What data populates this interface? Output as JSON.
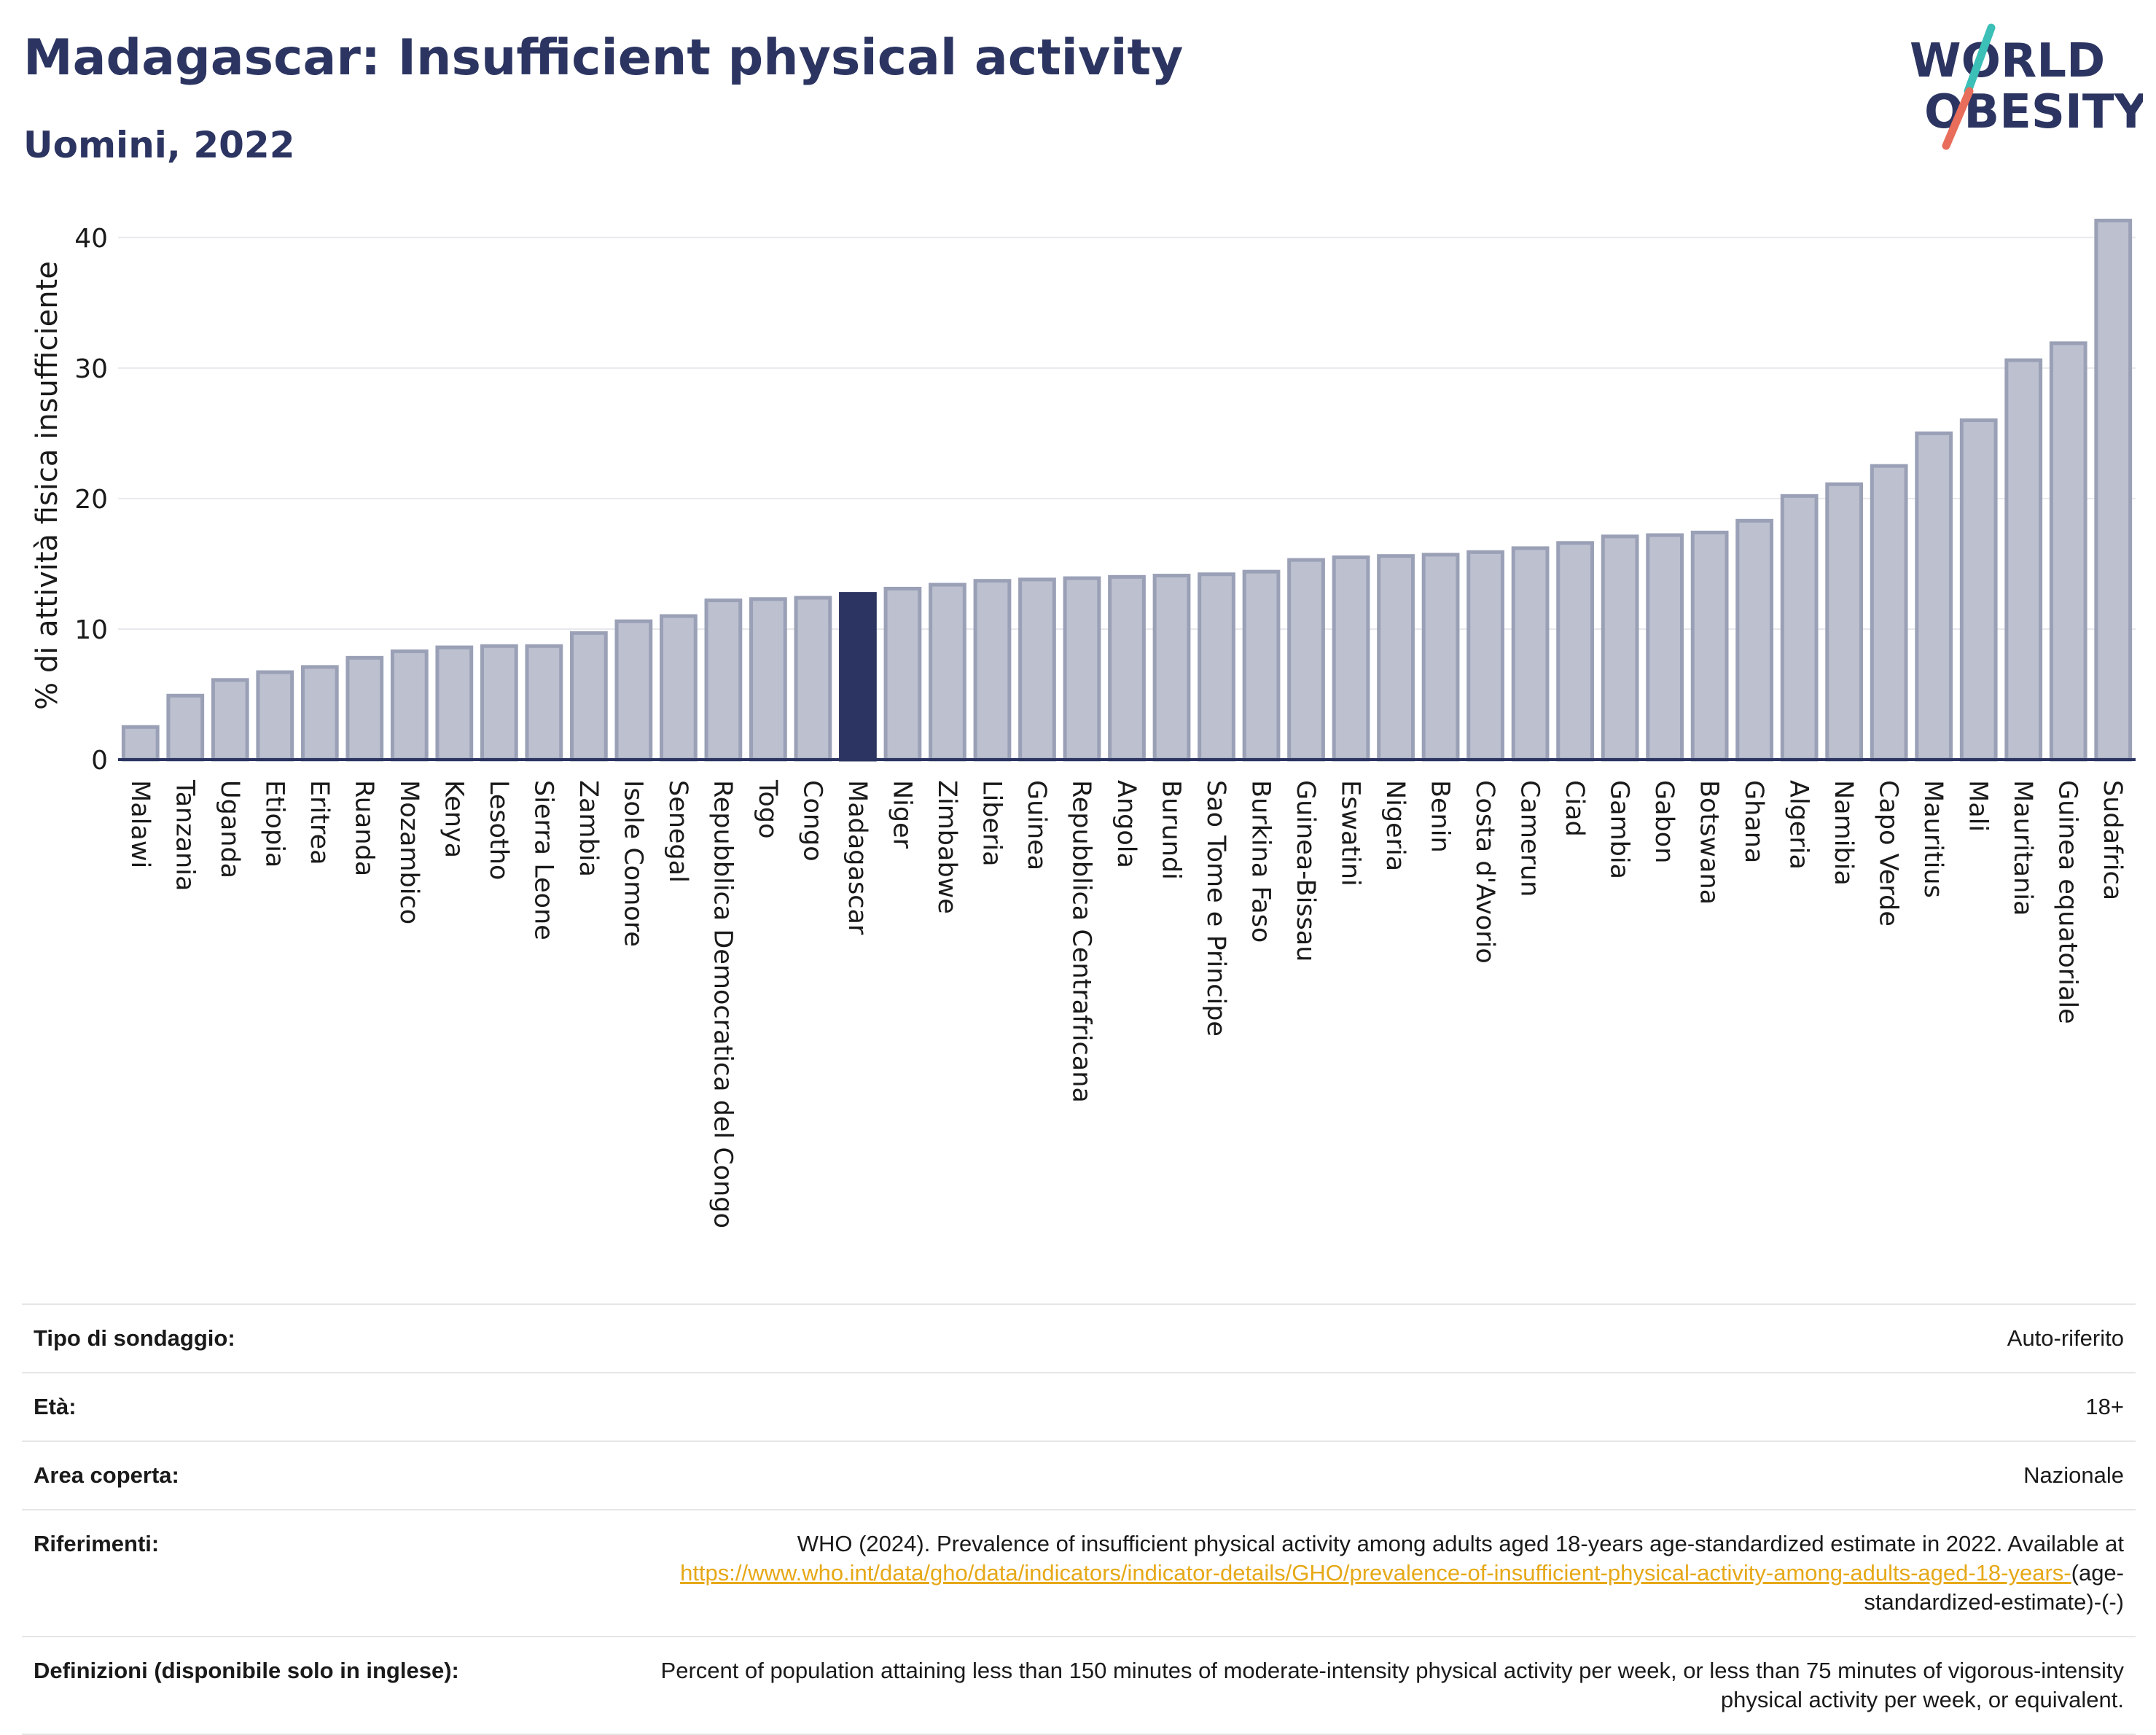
{
  "header": {
    "title": "Madagascar: Insufficient physical activity",
    "subtitle": "Uomini, 2022"
  },
  "logo": {
    "line1": "WORLD",
    "line2": "OBESITY"
  },
  "colors": {
    "bar": "#bcc0cf",
    "bar_stroke": "#9aa0b6",
    "highlight": "#2c3561",
    "axis": "#2c3561",
    "grid": "#e8e8ee",
    "link": "#e6a817",
    "logo_slash_teal": "#3bbfb7",
    "logo_slash_red": "#e86d5a"
  },
  "chart_data": {
    "type": "bar",
    "ylabel": "% di attività fisica insufficiente",
    "ylim": [
      0,
      42
    ],
    "yticks": [
      0,
      10,
      20,
      30,
      40
    ],
    "grid": true,
    "highlight": "Madagascar",
    "categories": [
      "Malawi",
      "Tanzania",
      "Uganda",
      "Etiopia",
      "Eritrea",
      "Ruanda",
      "Mozambico",
      "Kenya",
      "Lesotho",
      "Sierra Leone",
      "Zambia",
      "Isole Comore",
      "Senegal",
      "Repubblica Democratica del Congo",
      "Togo",
      "Congo",
      "Madagascar",
      "Niger",
      "Zimbabwe",
      "Liberia",
      "Guinea",
      "Repubblica Centrafricana",
      "Angola",
      "Burundi",
      "Sao Tome e Principe",
      "Burkina Faso",
      "Guinea-Bissau",
      "Eswatini",
      "Nigeria",
      "Benin",
      "Costa d'Avorio",
      "Camerun",
      "Ciad",
      "Gambia",
      "Gabon",
      "Botswana",
      "Ghana",
      "Algeria",
      "Namibia",
      "Capo Verde",
      "Mauritius",
      "Mali",
      "Mauritania",
      "Guinea equatoriale",
      "Sudafrica"
    ],
    "values": [
      2.5,
      4.9,
      6.1,
      6.7,
      7.1,
      7.8,
      8.3,
      8.6,
      8.7,
      8.7,
      9.7,
      10.6,
      11.0,
      12.2,
      12.3,
      12.4,
      12.7,
      13.1,
      13.4,
      13.7,
      13.8,
      13.9,
      14.0,
      14.1,
      14.2,
      14.4,
      15.3,
      15.5,
      15.6,
      15.7,
      15.9,
      16.2,
      16.6,
      17.1,
      17.2,
      17.4,
      18.3,
      20.2,
      21.1,
      22.5,
      25.0,
      26.0,
      30.6,
      31.9,
      41.3
    ]
  },
  "info": {
    "survey_label": "Tipo di sondaggio:",
    "survey_value": "Auto-riferito",
    "age_label": "Età:",
    "age_value": "18+",
    "area_label": "Area coperta:",
    "area_value": "Nazionale",
    "refs_label": "Riferimenti:",
    "refs_text": "WHO (2024). Prevalence of insufficient physical activity among adults aged 18-years age-standardized estimate in 2022. Available at",
    "refs_link": "https://www.who.int/data/gho/data/indicators/indicator-details/GHO/prevalence-of-insufficient-physical-activity-among-adults-aged-18-years-",
    "refs_tail": "(age-standardized-estimate)-(-)",
    "defs_label": "Definizioni (disponibile solo in inglese):",
    "defs_value": "Percent of population attaining less than 150 minutes of moderate-intensity physical activity per week, or less than 75 minutes of vigorous-intensity physical activity per week, or equivalent."
  }
}
